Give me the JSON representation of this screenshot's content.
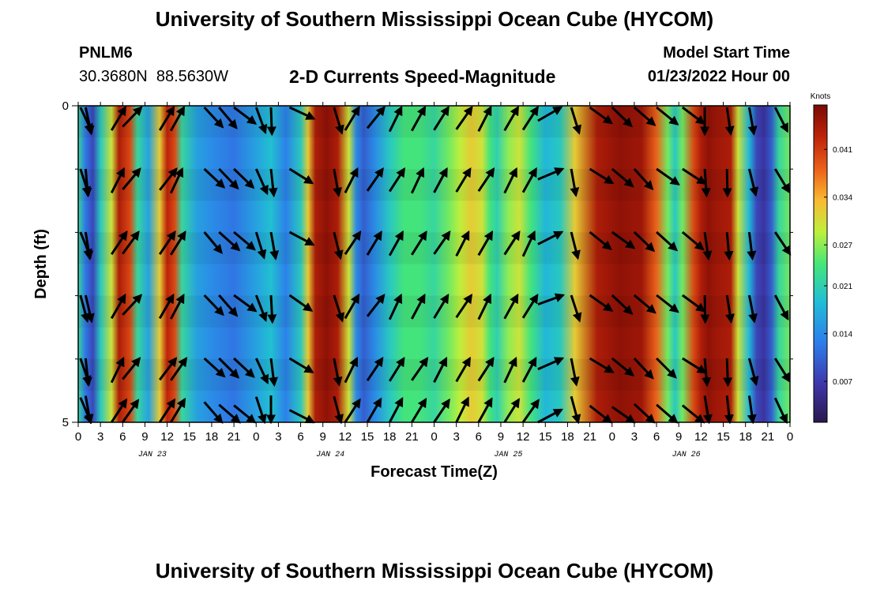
{
  "header": {
    "title": "University of Southern Mississippi Ocean Cube (HYCOM)",
    "station": "PNLM6",
    "coordinates": "30.3680N  88.5630W",
    "subtitle": "2-D Currents Speed-Magnitude",
    "start_label": "Model Start Time",
    "start_value": "01/23/2022 Hour 00"
  },
  "footer": {
    "title": "University of Southern Mississippi Ocean Cube (HYCOM)"
  },
  "chart_data": {
    "type": "heatmap",
    "title": "2-D Currents Speed-Magnitude",
    "xlabel": "Forecast Time(Z)",
    "ylabel": "Depth (ft)",
    "x_hours": [
      0,
      96
    ],
    "ylim": [
      0,
      5
    ],
    "x_tick_labels": [
      "0",
      "3",
      "6",
      "9",
      "12",
      "15",
      "18",
      "21",
      "0",
      "3",
      "6",
      "9",
      "12",
      "15",
      "18",
      "21",
      "0",
      "3",
      "6",
      "9",
      "12",
      "15",
      "18",
      "21",
      "0",
      "3",
      "6",
      "9",
      "12",
      "15",
      "18",
      "21",
      "0"
    ],
    "y_tick_labels": [
      "0",
      "5"
    ],
    "day_labels": [
      {
        "label": "JAN 23",
        "hour": 10
      },
      {
        "label": "JAN 24",
        "hour": 34
      },
      {
        "label": "JAN 25",
        "hour": 58
      },
      {
        "label": "JAN 26",
        "hour": 82
      }
    ],
    "colorbar": {
      "title": "Knots",
      "min": 0.001,
      "max": 0.0475,
      "ticks": [
        0.007,
        0.014,
        0.021,
        0.027,
        0.034,
        0.041
      ],
      "tick_labels": [
        "0.007",
        "0.014",
        "0.021",
        "0.027",
        "0.034",
        "0.041"
      ]
    },
    "speed_profile": {
      "hours": [
        0,
        1,
        2,
        3,
        4.5,
        5.5,
        7,
        8,
        9.5,
        11,
        12,
        13,
        14,
        16,
        18,
        21,
        24,
        26,
        28,
        30,
        31,
        32,
        33.5,
        35,
        36.5,
        37.5,
        38.5,
        40,
        42,
        44,
        46,
        48,
        50,
        51.5,
        53,
        54.5,
        55.5,
        56.5,
        58,
        59.5,
        61,
        63,
        65,
        67,
        70,
        73,
        76,
        78,
        79.5,
        80.5,
        81.5,
        83,
        84,
        85,
        86,
        88,
        89,
        90.5,
        91.5,
        92.5,
        93.5,
        94.5,
        96
      ],
      "speeds": [
        0.022,
        0.012,
        0.008,
        0.02,
        0.03,
        0.044,
        0.04,
        0.022,
        0.016,
        0.032,
        0.043,
        0.04,
        0.022,
        0.016,
        0.014,
        0.012,
        0.016,
        0.019,
        0.013,
        0.02,
        0.032,
        0.044,
        0.046,
        0.044,
        0.03,
        0.014,
        0.01,
        0.014,
        0.02,
        0.024,
        0.024,
        0.022,
        0.026,
        0.029,
        0.032,
        0.03,
        0.024,
        0.021,
        0.027,
        0.03,
        0.024,
        0.018,
        0.02,
        0.032,
        0.044,
        0.046,
        0.045,
        0.038,
        0.026,
        0.02,
        0.026,
        0.04,
        0.044,
        0.046,
        0.045,
        0.044,
        0.03,
        0.018,
        0.008,
        0.006,
        0.01,
        0.022,
        0.026
      ]
    },
    "vector_hours": [
      0.3,
      1,
      4.5,
      6,
      11,
      12.5,
      17,
      19,
      21,
      24,
      26,
      28.5,
      34.5,
      36,
      39,
      42,
      45,
      48,
      51,
      54,
      57.5,
      60,
      62,
      66.5,
      69,
      72,
      75,
      78,
      81.5,
      84.5,
      87.5,
      90.5,
      94
    ],
    "vector_directions_deg": [
      160,
      170,
      30,
      40,
      35,
      30,
      135,
      135,
      130,
      160,
      175,
      120,
      165,
      30,
      35,
      30,
      30,
      30,
      30,
      30,
      30,
      30,
      65,
      165,
      125,
      130,
      135,
      130,
      125,
      175,
      175,
      170,
      150
    ]
  }
}
